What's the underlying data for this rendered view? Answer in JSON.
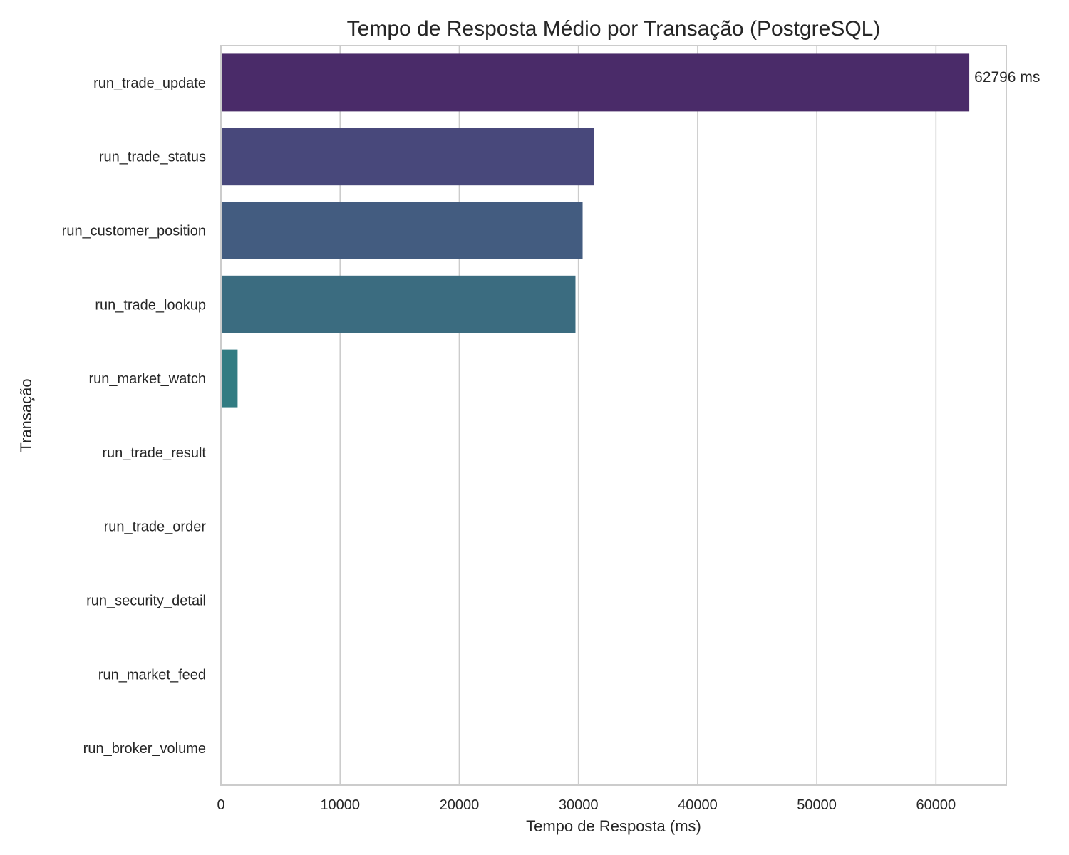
{
  "chart_data": {
    "type": "bar",
    "orientation": "horizontal",
    "title": "Tempo de Resposta Médio por Transação (PostgreSQL)",
    "xlabel": "Tempo de Resposta (ms)",
    "ylabel": "Transação",
    "xlim": [
      0,
      65900
    ],
    "xticks": [
      0,
      10000,
      20000,
      30000,
      40000,
      50000,
      60000
    ],
    "grid": "vertical",
    "legend": "none",
    "categories": [
      "run_trade_update",
      "run_trade_status",
      "run_customer_position",
      "run_trade_lookup",
      "run_market_watch",
      "run_trade_result",
      "run_trade_order",
      "run_security_detail",
      "run_market_feed",
      "run_broker_volume"
    ],
    "values": [
      62796,
      31300,
      30350,
      29750,
      1400,
      0,
      0,
      0,
      0,
      0
    ],
    "colors": [
      "#4a2b69",
      "#48487b",
      "#435c80",
      "#3b6c80",
      "#327c82",
      "#2a8b80",
      "#2e9a79",
      "#3faa6c",
      "#62b85a",
      "#8fc545"
    ],
    "data_labels": [
      {
        "index": 0,
        "text": "62796 ms"
      }
    ]
  }
}
